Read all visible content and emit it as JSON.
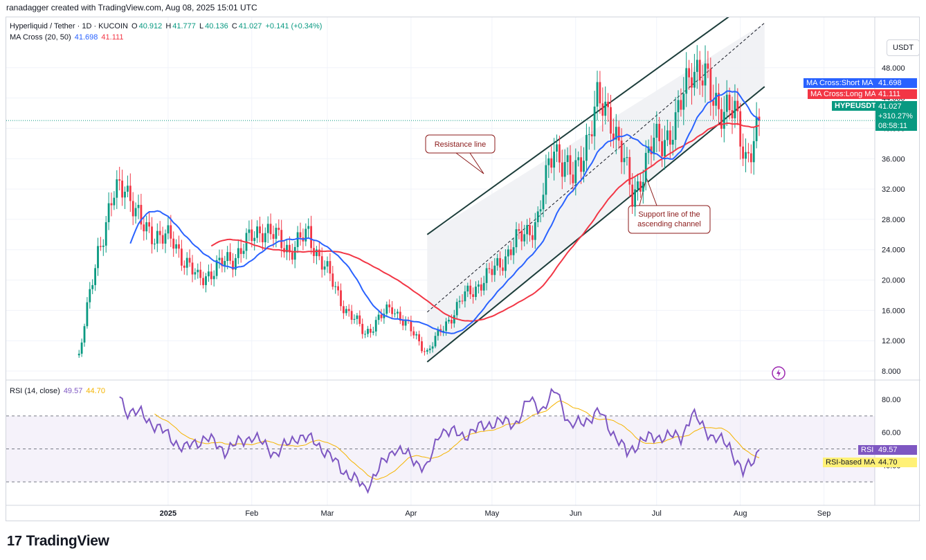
{
  "header": {
    "credit": "ranadagger created with TradingView.com, Aug 08, 2025 15:01 UTC",
    "symbol": "Hyperliquid / Tether · 1D · KUCOIN",
    "open_label": "O",
    "open": "40.912",
    "high_label": "H",
    "high": "41.777",
    "low_label": "L",
    "low": "40.136",
    "close_label": "C",
    "close": "41.027",
    "change": "+0.141 (+0.34%)",
    "ma_title": "MA Cross (20, 50)",
    "ma_short": "41.698",
    "ma_long": "41.111",
    "rsi_title": "RSI (14, close)",
    "rsi_val": "49.57",
    "rsi_ma": "44.70"
  },
  "currency_button": "USDT",
  "tags": {
    "ma_short_label": "MA Cross:Short MA",
    "ma_short_val": "41.698",
    "ma_long_label": "MA Cross:Long MA",
    "ma_long_val": "41.111",
    "symbol_label": "HYPEUSDT",
    "price": "41.027",
    "pct": "+310.27%",
    "countdown": "08:58:11",
    "rsi_label": "RSI",
    "rsi_value": "49.57",
    "rsi_ma_label": "RSI-based MA",
    "rsi_ma_value": "44.70"
  },
  "annotations": {
    "resistance": "Resistance line",
    "support_1": "Support line of the",
    "support_2": "ascending channel"
  },
  "logo": {
    "mark": "17",
    "text": "TradingView"
  },
  "colors": {
    "up": "#089981",
    "down": "#f23645",
    "ma_short": "#2962ff",
    "ma_long": "#f23645",
    "rsi": "#7e57c2",
    "rsi_ma": "#f5b400"
  },
  "chart_data": {
    "type": "candlestick",
    "x_ticks": [
      "2025",
      "Feb",
      "Mar",
      "Apr",
      "May",
      "Jun",
      "Jul",
      "Aug",
      "Sep"
    ],
    "y_ticks": [
      8,
      12,
      16,
      20,
      24,
      28,
      32,
      36,
      40,
      44,
      48
    ],
    "y_tick_labels": [
      "8.000",
      "12.000",
      "16.000",
      "20.000",
      "24.000",
      "28.000",
      "32.000",
      "36.000",
      "40.000",
      "44.000",
      "48.000"
    ],
    "ylim": [
      7,
      53
    ],
    "anchors": [
      [
        "2024-11-29",
        10.0
      ],
      [
        "2024-12-01",
        14.0
      ],
      [
        "2024-12-06",
        24.0
      ],
      [
        "2024-12-12",
        31.0
      ],
      [
        "2024-12-16",
        33.0
      ],
      [
        "2024-12-22",
        27.0
      ],
      [
        "2025-01-03",
        25.0
      ],
      [
        "2025-01-12",
        20.0
      ],
      [
        "2025-01-25",
        23.0
      ],
      [
        "2025-02-05",
        27.0
      ],
      [
        "2025-02-15",
        24.0
      ],
      [
        "2025-02-22",
        26.0
      ],
      [
        "2025-03-01",
        21.0
      ],
      [
        "2025-03-08",
        16.0
      ],
      [
        "2025-03-15",
        13.0
      ],
      [
        "2025-03-25",
        16.5
      ],
      [
        "2025-04-07",
        10.5
      ],
      [
        "2025-04-20",
        17.5
      ],
      [
        "2025-05-01",
        21.0
      ],
      [
        "2025-05-10",
        25.0
      ],
      [
        "2025-05-18",
        28.0
      ],
      [
        "2025-05-24",
        38.0
      ],
      [
        "2025-05-31",
        33.0
      ],
      [
        "2025-06-09",
        43.0
      ],
      [
        "2025-06-14",
        42.0
      ],
      [
        "2025-06-22",
        31.0
      ],
      [
        "2025-06-30",
        38.0
      ],
      [
        "2025-07-08",
        40.0
      ],
      [
        "2025-07-14",
        49.0
      ],
      [
        "2025-07-22",
        44.0
      ],
      [
        "2025-07-30",
        41.5
      ],
      [
        "2025-08-03",
        36.5
      ],
      [
        "2025-08-07",
        39.0
      ],
      [
        "2025-08-08",
        41.027
      ]
    ],
    "rsi": {
      "ylim": [
        20,
        88
      ],
      "y_ticks": [
        40,
        60,
        80
      ],
      "y_tick_labels": [
        "40.00",
        "60.00",
        "80.00"
      ],
      "bands": [
        30,
        70
      ],
      "anchors": [
        [
          "2024-12-14",
          83
        ],
        [
          "2024-12-16",
          74
        ],
        [
          "2024-12-22",
          71
        ],
        [
          "2025-01-01",
          58
        ],
        [
          "2025-01-07",
          50
        ],
        [
          "2025-01-15",
          57
        ],
        [
          "2025-01-22",
          49
        ],
        [
          "2025-02-01",
          58
        ],
        [
          "2025-02-10",
          47
        ],
        [
          "2025-02-18",
          58
        ],
        [
          "2025-02-25",
          54
        ],
        [
          "2025-03-05",
          40
        ],
        [
          "2025-03-15",
          26
        ],
        [
          "2025-03-26",
          51
        ],
        [
          "2025-04-07",
          38
        ],
        [
          "2025-04-12",
          62
        ],
        [
          "2025-04-20",
          58
        ],
        [
          "2025-05-01",
          66
        ],
        [
          "2025-05-10",
          66
        ],
        [
          "2025-05-15",
          80
        ],
        [
          "2025-05-20",
          74
        ],
        [
          "2025-05-25",
          86
        ],
        [
          "2025-05-30",
          63
        ],
        [
          "2025-06-10",
          72
        ],
        [
          "2025-06-20",
          47
        ],
        [
          "2025-06-25",
          55
        ],
        [
          "2025-07-03",
          58
        ],
        [
          "2025-07-10",
          57
        ],
        [
          "2025-07-14",
          71
        ],
        [
          "2025-07-22",
          57
        ],
        [
          "2025-07-28",
          52
        ],
        [
          "2025-08-02",
          35
        ],
        [
          "2025-08-06",
          44
        ],
        [
          "2025-08-08",
          49.57
        ]
      ]
    }
  }
}
